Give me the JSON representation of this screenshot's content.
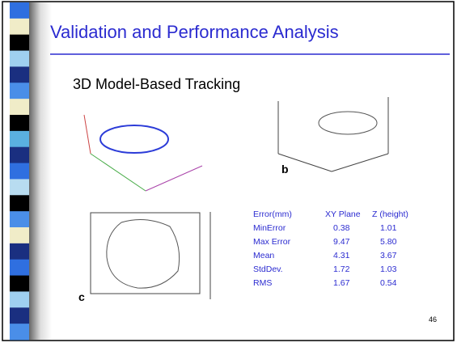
{
  "header": {
    "title": "Validation and Performance Analysis",
    "subtitle": "3D Model-Based Tracking"
  },
  "figures": {
    "b_label": "b",
    "c_label": "c"
  },
  "table": {
    "header": [
      "Error(mm)",
      "XY Plane",
      "Z (height)"
    ],
    "rows": [
      [
        "MinError",
        "0.38",
        "1.01"
      ],
      [
        "Max Error",
        "9.47",
        "5.80"
      ],
      [
        "Mean",
        "4.31",
        "3.67"
      ],
      [
        "StdDev.",
        "1.72",
        "1.03"
      ],
      [
        "RMS",
        "1.67",
        "0.54"
      ]
    ]
  },
  "footer": {
    "page_number": "46"
  }
}
